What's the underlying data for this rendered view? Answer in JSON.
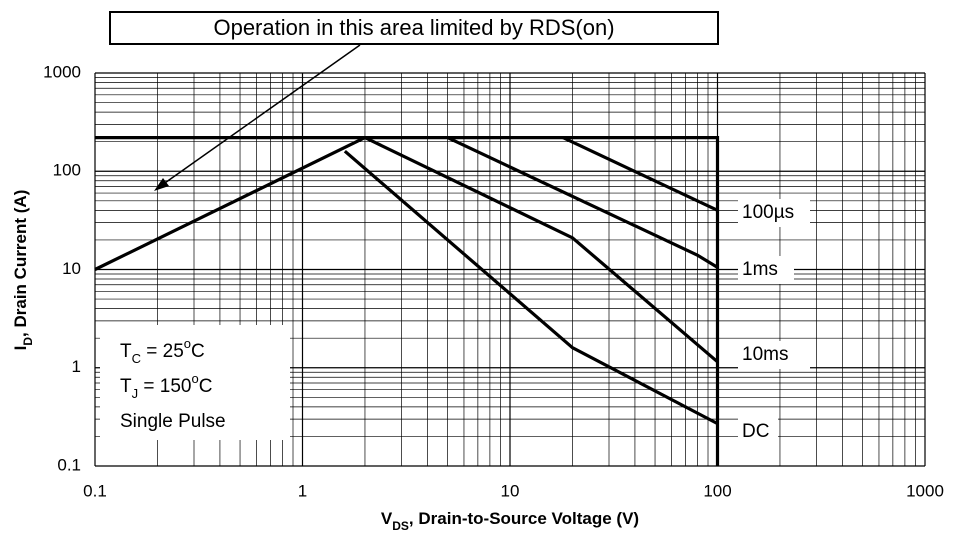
{
  "chart_data": {
    "type": "line",
    "annotation": "Operation in this area limited by RDS(on)",
    "notes": [
      [
        "T",
        "C",
        " = 25",
        "o",
        "C"
      ],
      [
        "T",
        "J",
        " = 150",
        "o",
        "C"
      ],
      [
        "Single Pulse"
      ]
    ],
    "xlabel": [
      "V",
      "DS",
      ", Drain-to-Source Voltage (V)"
    ],
    "ylabel": [
      "I",
      "D",
      ", Drain Current (A)"
    ],
    "log_x": true,
    "log_y": true,
    "grid": true,
    "xlim": [
      0.1,
      1000
    ],
    "xticks": [
      0.1,
      1,
      10,
      100,
      1000
    ],
    "ylim": [
      0.1,
      1000
    ],
    "yticks": [
      0.1,
      1,
      10,
      100,
      1000
    ],
    "boundary": [
      {
        "x": [
          0.1,
          100,
          100
        ],
        "values": [
          220,
          220,
          0.1
        ]
      },
      {
        "x": [
          0.1,
          2
        ],
        "values": [
          10,
          220
        ]
      }
    ],
    "series": [
      {
        "name": "100µs",
        "color": "#000000",
        "x": [
          18,
          100
        ],
        "values": [
          220,
          40
        ]
      },
      {
        "name": "1ms",
        "color": "#000000",
        "x": [
          5,
          80,
          100
        ],
        "values": [
          220,
          14,
          10.5
        ]
      },
      {
        "name": "10ms",
        "color": "#000000",
        "x": [
          2,
          20,
          100
        ],
        "values": [
          220,
          21,
          1.15
        ]
      },
      {
        "name": "DC",
        "color": "#000000",
        "x": [
          1.6,
          20,
          100
        ],
        "values": [
          160,
          1.6,
          0.27
        ]
      }
    ]
  }
}
